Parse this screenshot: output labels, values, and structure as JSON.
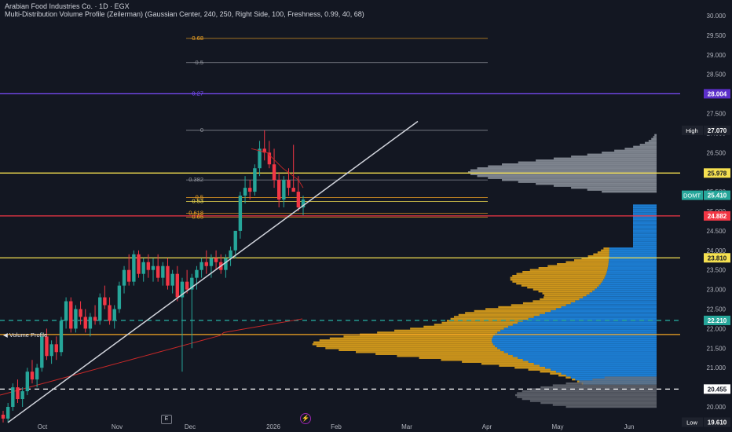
{
  "header": {
    "title": "Arabian Food Industries Co. · 1D · EGX",
    "indicator": "Multi-Distribution Volume Profile (Zeilerman) (Gaussian Center, 240, 250, Right Side, 100, Freshness, 0.99, 40, 68)"
  },
  "volume_profile_label": "Volume Profile",
  "axis_control_label": "E",
  "bolt_icon": "lightning-icon",
  "colors": {
    "background": "#131722",
    "up": "#26a69a",
    "down": "#f23645",
    "yellow": "#f5e050",
    "orange": "#f5a623",
    "purple": "#7c4dff",
    "red": "#f23645",
    "green": "#26a69a",
    "profile_blue": "#1e88e5",
    "profile_gold": "#e0a21b",
    "profile_gray": "#b0b4bd"
  },
  "chart_data": {
    "type": "candlestick",
    "title": "Arabian Food Industries Co. · 1D · EGX",
    "ylim": [
      19.5,
      30.2
    ],
    "y_ticks": [
      "20.000",
      "20.500",
      "21.000",
      "21.500",
      "22.000",
      "22.500",
      "23.000",
      "23.500",
      "24.000",
      "24.500",
      "25.000",
      "25.500",
      "26.000",
      "26.500",
      "27.000",
      "27.500",
      "28.000",
      "28.500",
      "29.000",
      "29.500",
      "30.000"
    ],
    "x_ticks": [
      "Oct",
      "Nov",
      "Dec",
      "2026",
      "Feb",
      "Mar",
      "Apr",
      "May",
      "Jun"
    ],
    "price_labels": [
      {
        "text": "High",
        "value": "27.070",
        "color": "#2a2e39",
        "valueColor": "#2a2e39",
        "v": 27.07
      },
      {
        "text": "",
        "value": "28.004",
        "color": "#5b2fc9",
        "v": 28.004
      },
      {
        "text": "",
        "value": "25.978",
        "color": "#f5e050",
        "dark": true,
        "v": 25.978
      },
      {
        "text": "DOMT",
        "value": "25.410",
        "color": "#26a69a",
        "v": 25.41
      },
      {
        "text": "",
        "value": "24.882",
        "color": "#f23645",
        "v": 24.882
      },
      {
        "text": "",
        "value": "23.810",
        "color": "#f5e050",
        "dark": true,
        "v": 23.81
      },
      {
        "text": "",
        "value": "22.210",
        "color": "#26a69a",
        "v": 22.21
      },
      {
        "text": "",
        "value": "20.455",
        "color": "#ffffff",
        "dark": true,
        "v": 20.455
      },
      {
        "text": "Low",
        "value": "19.610",
        "color": "#2a2e39",
        "valueColor": "#2a2e39",
        "v": 19.61
      }
    ],
    "fib_levels": [
      {
        "label": "-0.68",
        "v": 29.42,
        "color": "#f5a623"
      },
      {
        "label": "-0.5",
        "v": 28.8,
        "color": "#9598a1"
      },
      {
        "label": "0.27",
        "v": 28.004,
        "color": "#7c4dff"
      },
      {
        "label": "0",
        "v": 27.07,
        "color": "#9598a1"
      },
      {
        "label": "0.382",
        "v": 25.8,
        "color": "#9598a1"
      },
      {
        "label": "0.5",
        "v": 25.35,
        "color": "#f5a623"
      },
      {
        "label": "0.53",
        "v": 25.25,
        "color": "#f5e050"
      },
      {
        "label": "0.618",
        "v": 24.95,
        "color": "#f5a623"
      },
      {
        "label": "0.65",
        "v": 24.85,
        "color": "#f5a623"
      }
    ],
    "horizontal_lines": [
      {
        "v": 28.004,
        "color": "#7c4dff",
        "style": "solid"
      },
      {
        "v": 25.978,
        "color": "#f5e050",
        "style": "solid"
      },
      {
        "v": 24.882,
        "color": "#f23645",
        "style": "solid"
      },
      {
        "v": 23.81,
        "color": "#f5e050",
        "style": "solid"
      },
      {
        "v": 22.21,
        "color": "#26a69a",
        "style": "dashed"
      },
      {
        "v": 21.85,
        "color": "#f5a623",
        "style": "solid"
      },
      {
        "v": 20.455,
        "color": "#ffffff",
        "style": "dashed"
      }
    ],
    "trendline": {
      "from": [
        0,
        19.6
      ],
      "to": [
        105,
        27.3
      ]
    },
    "candles_ohlc": [
      [
        19.8,
        19.9,
        19.6,
        19.7
      ],
      [
        19.7,
        20.1,
        19.6,
        20.0
      ],
      [
        20.0,
        20.6,
        19.9,
        20.5
      ],
      [
        20.5,
        20.7,
        20.1,
        20.2
      ],
      [
        20.2,
        20.5,
        20.0,
        20.4
      ],
      [
        20.4,
        21.0,
        20.3,
        20.9
      ],
      [
        20.9,
        21.2,
        20.6,
        20.7
      ],
      [
        20.7,
        21.1,
        20.5,
        21.0
      ],
      [
        21.0,
        21.9,
        20.9,
        21.8
      ],
      [
        21.8,
        22.0,
        21.2,
        21.3
      ],
      [
        21.3,
        21.7,
        21.1,
        21.6
      ],
      [
        21.6,
        21.8,
        21.2,
        21.4
      ],
      [
        21.4,
        22.3,
        21.3,
        22.2
      ],
      [
        22.2,
        22.8,
        22.0,
        22.7
      ],
      [
        22.7,
        22.8,
        21.9,
        22.0
      ],
      [
        22.0,
        22.6,
        21.9,
        22.5
      ],
      [
        22.5,
        22.7,
        22.1,
        22.3
      ],
      [
        22.3,
        22.5,
        21.9,
        22.0
      ],
      [
        22.0,
        22.4,
        21.8,
        22.3
      ],
      [
        22.3,
        22.6,
        22.1,
        22.2
      ],
      [
        22.2,
        22.9,
        22.1,
        22.8
      ],
      [
        22.8,
        23.1,
        22.5,
        22.6
      ],
      [
        22.6,
        22.8,
        22.1,
        22.2
      ],
      [
        22.2,
        22.6,
        22.0,
        22.5
      ],
      [
        22.5,
        23.2,
        22.4,
        23.1
      ],
      [
        23.1,
        23.6,
        22.9,
        23.5
      ],
      [
        23.5,
        23.9,
        23.1,
        23.2
      ],
      [
        23.2,
        24.0,
        23.1,
        23.9
      ],
      [
        23.9,
        24.0,
        23.3,
        23.4
      ],
      [
        23.4,
        23.8,
        23.2,
        23.7
      ],
      [
        23.7,
        23.9,
        23.3,
        23.5
      ],
      [
        23.5,
        23.8,
        23.2,
        23.6
      ],
      [
        23.6,
        23.9,
        23.2,
        23.3
      ],
      [
        23.3,
        23.7,
        23.1,
        23.6
      ],
      [
        23.6,
        23.8,
        23.0,
        23.1
      ],
      [
        23.1,
        23.5,
        22.9,
        23.4
      ],
      [
        23.4,
        23.6,
        22.7,
        22.8
      ],
      [
        22.8,
        23.3,
        20.9,
        23.2
      ],
      [
        23.2,
        23.5,
        22.9,
        23.0
      ],
      [
        23.0,
        23.4,
        21.5,
        23.3
      ],
      [
        23.3,
        23.6,
        23.0,
        23.5
      ],
      [
        23.5,
        23.8,
        23.3,
        23.7
      ],
      [
        23.7,
        24.0,
        23.4,
        23.6
      ],
      [
        23.6,
        23.9,
        23.3,
        23.8
      ],
      [
        23.8,
        24.0,
        23.5,
        23.7
      ],
      [
        23.7,
        23.9,
        23.4,
        23.5
      ],
      [
        23.5,
        23.9,
        23.3,
        23.8
      ],
      [
        23.8,
        24.1,
        23.6,
        24.0
      ],
      [
        24.0,
        24.5,
        23.8,
        24.5
      ],
      [
        24.5,
        25.5,
        24.3,
        25.4
      ],
      [
        25.4,
        25.9,
        25.2,
        25.6
      ],
      [
        25.6,
        25.8,
        25.3,
        25.5
      ],
      [
        25.5,
        26.2,
        25.4,
        26.1
      ],
      [
        26.1,
        26.8,
        25.9,
        26.6
      ],
      [
        26.6,
        27.07,
        26.3,
        26.5
      ],
      [
        26.5,
        26.8,
        26.1,
        26.2
      ],
      [
        26.2,
        26.6,
        25.6,
        25.8
      ],
      [
        25.8,
        26.0,
        25.1,
        25.3
      ],
      [
        25.3,
        25.9,
        25.1,
        25.8
      ],
      [
        25.8,
        26.1,
        25.4,
        25.6
      ],
      [
        25.6,
        26.7,
        25.5,
        25.5
      ],
      [
        25.5,
        25.9,
        25.0,
        25.1
      ],
      [
        25.1,
        25.4,
        24.9,
        25.3
      ]
    ]
  }
}
